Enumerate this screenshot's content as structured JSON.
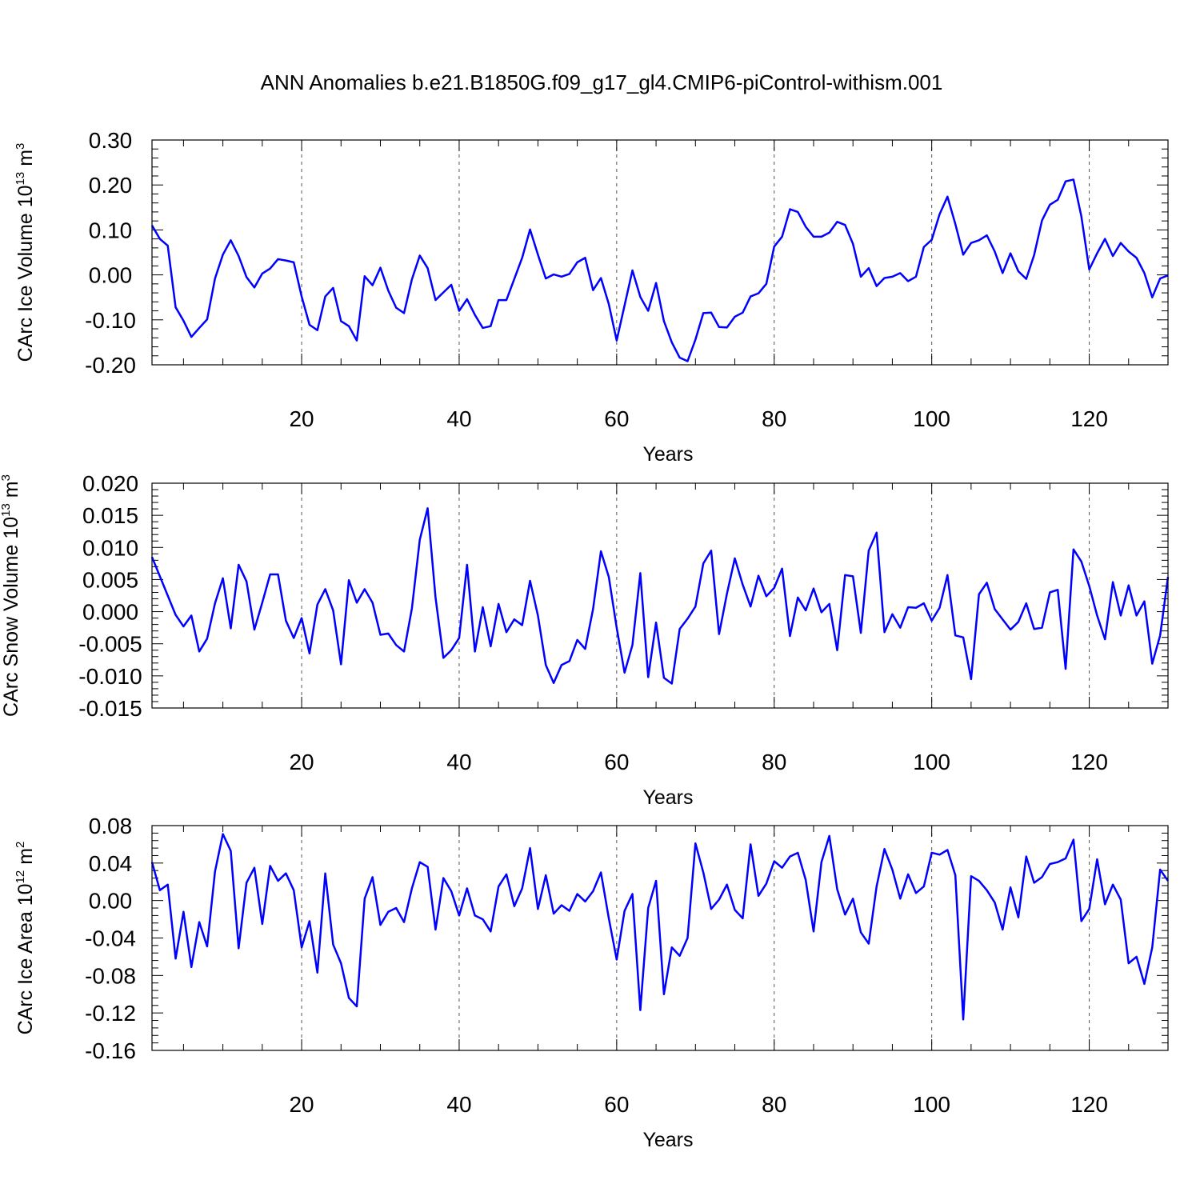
{
  "title": "ANN Anomalies b.e21.B1850G.f09_g17_gl4.CMIP6-piControl-withism.001",
  "colors": {
    "series": "#0000ff",
    "axis": "#000000",
    "grid": "#555555",
    "background": "#ffffff"
  },
  "chart_data": [
    {
      "type": "line",
      "ylabel": {
        "text": "CArc Ice Volume 10",
        "exponent": "13",
        "unit_text": " m",
        "unit_exponent": "3"
      },
      "xlabel": "Years",
      "xlim": [
        1,
        130
      ],
      "ylim": [
        -0.2,
        0.3
      ],
      "y_ticks": [
        "0.30",
        "0.20",
        "0.10",
        "0.00",
        "-0.10",
        "-0.20"
      ],
      "y_tick_values": [
        0.3,
        0.2,
        0.1,
        0.0,
        -0.1,
        -0.2
      ],
      "x_ticks": [
        "20",
        "40",
        "60",
        "80",
        "100",
        "120"
      ],
      "x_tick_values": [
        20,
        40,
        60,
        80,
        100,
        120
      ],
      "grid": "dashed vertical at major x ticks",
      "series": [
        {
          "values": [
            0.11,
            0.08,
            0.065,
            -0.072,
            -0.102,
            -0.138,
            -0.118,
            -0.099,
            -0.008,
            0.045,
            0.077,
            0.042,
            -0.005,
            -0.028,
            0.003,
            0.014,
            0.035,
            0.032,
            0.028,
            -0.048,
            -0.111,
            -0.123,
            -0.048,
            -0.029,
            -0.103,
            -0.114,
            -0.146,
            -0.003,
            -0.023,
            0.016,
            -0.035,
            -0.073,
            -0.085,
            -0.01,
            0.043,
            0.015,
            -0.056,
            -0.039,
            -0.022,
            -0.08,
            -0.054,
            -0.089,
            -0.118,
            -0.114,
            -0.056,
            -0.056,
            -0.009,
            0.038,
            0.101,
            0.045,
            -0.008,
            0.001,
            -0.004,
            0.002,
            0.028,
            0.038,
            -0.034,
            -0.007,
            -0.065,
            -0.146,
            -0.068,
            0.01,
            -0.049,
            -0.08,
            -0.018,
            -0.103,
            -0.15,
            -0.184,
            -0.192,
            -0.144,
            -0.085,
            -0.084,
            -0.116,
            -0.117,
            -0.093,
            -0.084,
            -0.048,
            -0.041,
            -0.02,
            0.063,
            0.085,
            0.146,
            0.14,
            0.107,
            0.085,
            0.085,
            0.094,
            0.118,
            0.111,
            0.069,
            -0.004,
            0.015,
            -0.025,
            -0.007,
            -0.004,
            0.004,
            -0.014,
            -0.004,
            0.062,
            0.078,
            0.135,
            0.174,
            0.113,
            0.045,
            0.071,
            0.077,
            0.088,
            0.052,
            0.004,
            0.048,
            0.008,
            -0.009,
            0.044,
            0.121,
            0.156,
            0.167,
            0.208,
            0.212,
            0.13,
            0.012,
            0.048,
            0.08,
            0.042,
            0.071,
            0.052,
            0.038,
            0.004,
            -0.05,
            -0.008,
            -0.001
          ]
        }
      ]
    },
    {
      "type": "line",
      "ylabel": {
        "text": "CArc Snow Volume 10",
        "exponent": "13",
        "unit_text": " m",
        "unit_exponent": "3"
      },
      "xlabel": "Years",
      "xlim": [
        1,
        130
      ],
      "ylim": [
        -0.015,
        0.02
      ],
      "y_ticks": [
        "0.020",
        "0.015",
        "0.010",
        "0.005",
        "0.000",
        "-0.005",
        "-0.010",
        "-0.015"
      ],
      "y_tick_values": [
        0.02,
        0.015,
        0.01,
        0.005,
        0.0,
        -0.005,
        -0.01,
        -0.015
      ],
      "x_ticks": [
        "20",
        "40",
        "60",
        "80",
        "100",
        "120"
      ],
      "x_tick_values": [
        20,
        40,
        60,
        80,
        100,
        120
      ],
      "grid": "dashed vertical at major x ticks",
      "series": [
        {
          "values": [
            0.0085,
            0.0055,
            0.0025,
            -0.0005,
            -0.0023,
            -0.0006,
            -0.0062,
            -0.0042,
            0.0013,
            0.0052,
            -0.0026,
            0.0073,
            0.0047,
            -0.0028,
            0.0014,
            0.0058,
            0.0058,
            -0.0014,
            -0.0041,
            -0.001,
            -0.0065,
            0.0011,
            0.0035,
            0.0002,
            -0.0082,
            0.0049,
            0.0014,
            0.0035,
            0.0014,
            -0.0036,
            -0.0034,
            -0.0052,
            -0.0062,
            0.0005,
            0.0112,
            0.0161,
            0.0022,
            -0.0072,
            -0.006,
            -0.0041,
            0.0073,
            -0.0062,
            0.0007,
            -0.0054,
            0.0012,
            -0.0032,
            -0.0012,
            -0.0021,
            0.0048,
            -0.0006,
            -0.0083,
            -0.0111,
            -0.0083,
            -0.0077,
            -0.0044,
            -0.0058,
            0.0004,
            0.0094,
            0.0054,
            -0.0025,
            -0.0095,
            -0.0052,
            0.006,
            -0.0102,
            -0.0017,
            -0.0103,
            -0.0112,
            -0.0027,
            -0.0011,
            0.0008,
            0.0075,
            0.0095,
            -0.0035,
            0.0028,
            0.0083,
            0.0042,
            0.0008,
            0.0056,
            0.0024,
            0.0037,
            0.0067,
            -0.0038,
            0.0022,
            0.0002,
            0.0036,
            -0.0001,
            0.0012,
            -0.006,
            0.0057,
            0.0055,
            -0.0033,
            0.0095,
            0.0123,
            -0.0032,
            -0.0004,
            -0.0025,
            0.0007,
            0.0006,
            0.0013,
            -0.0014,
            0.0006,
            0.0057,
            -0.0037,
            -0.004,
            -0.0105,
            0.0027,
            0.0045,
            0.0004,
            -0.0012,
            -0.0028,
            -0.0016,
            0.0013,
            -0.0027,
            -0.0025,
            0.003,
            0.0034,
            -0.0089,
            0.0097,
            0.0078,
            0.004,
            -0.0006,
            -0.0043,
            0.0046,
            -0.0006,
            0.0041,
            -0.0006,
            0.0016,
            -0.0081,
            -0.0037,
            0.0054
          ]
        }
      ]
    },
    {
      "type": "line",
      "ylabel": {
        "text": "CArc Ice Area 10",
        "exponent": "12",
        "unit_text": " m",
        "unit_exponent": "2"
      },
      "xlabel": "Years",
      "xlim": [
        1,
        130
      ],
      "ylim": [
        -0.16,
        0.08
      ],
      "y_ticks": [
        "0.08",
        "0.04",
        "0.00",
        "-0.04",
        "-0.08",
        "-0.12",
        "-0.16"
      ],
      "y_tick_values": [
        0.08,
        0.04,
        0.0,
        -0.04,
        -0.08,
        -0.12,
        -0.16
      ],
      "x_ticks": [
        "20",
        "40",
        "60",
        "80",
        "100",
        "120"
      ],
      "x_tick_values": [
        20,
        40,
        60,
        80,
        100,
        120
      ],
      "grid": "dashed vertical at major x ticks",
      "series": [
        {
          "values": [
            0.041,
            0.011,
            0.017,
            -0.062,
            -0.012,
            -0.071,
            -0.023,
            -0.049,
            0.031,
            0.071,
            0.053,
            -0.051,
            0.019,
            0.035,
            -0.025,
            0.037,
            0.021,
            0.029,
            0.011,
            -0.05,
            -0.022,
            -0.077,
            0.029,
            -0.047,
            -0.067,
            -0.104,
            -0.113,
            0.002,
            0.025,
            -0.026,
            -0.012,
            -0.008,
            -0.023,
            0.013,
            0.041,
            0.036,
            -0.031,
            0.024,
            0.01,
            -0.016,
            0.013,
            -0.016,
            -0.02,
            -0.033,
            0.015,
            0.028,
            -0.006,
            0.013,
            0.056,
            -0.009,
            0.027,
            -0.014,
            -0.005,
            -0.011,
            0.007,
            -0.001,
            0.01,
            0.03,
            -0.019,
            -0.063,
            -0.011,
            0.007,
            -0.117,
            -0.008,
            0.021,
            -0.1,
            -0.05,
            -0.059,
            -0.04,
            0.061,
            0.03,
            -0.009,
            0.001,
            0.017,
            -0.01,
            -0.019,
            0.06,
            0.005,
            0.018,
            0.042,
            0.035,
            0.047,
            0.051,
            0.022,
            -0.033,
            0.041,
            0.069,
            0.012,
            -0.015,
            0.002,
            -0.034,
            -0.046,
            0.015,
            0.055,
            0.033,
            0.002,
            0.028,
            0.008,
            0.015,
            0.051,
            0.049,
            0.054,
            0.027,
            -0.127,
            0.026,
            0.021,
            0.011,
            -0.002,
            -0.031,
            0.014,
            -0.018,
            0.047,
            0.019,
            0.025,
            0.039,
            0.041,
            0.045,
            0.065,
            -0.022,
            -0.009,
            0.044,
            -0.004,
            0.017,
            0.001,
            -0.067,
            -0.06,
            -0.089,
            -0.05,
            0.033,
            0.021
          ]
        }
      ]
    }
  ]
}
